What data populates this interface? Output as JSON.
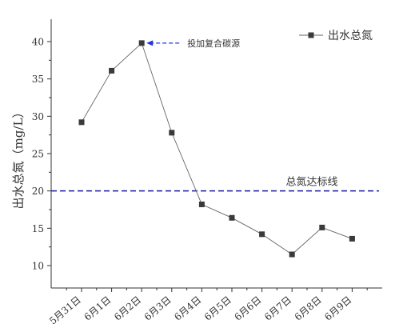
{
  "chart_data": {
    "type": "line",
    "title": "",
    "xlabel": "",
    "ylabel": "出水总氮（mg/L）",
    "categories": [
      "5月31日",
      "6月1日",
      "6月2日",
      "6月3日",
      "6月4日",
      "6月5日",
      "6月6日",
      "6月7日",
      "6月8日",
      "6月9日"
    ],
    "series": [
      {
        "name": "出水总氮",
        "values": [
          29.2,
          36.1,
          39.8,
          27.8,
          18.2,
          16.4,
          14.2,
          11.5,
          15.1,
          13.6
        ],
        "color": "#333333",
        "marker": "square"
      }
    ],
    "ylim": [
      7,
      43
    ],
    "yticks": [
      10,
      15,
      20,
      25,
      30,
      35,
      40
    ],
    "grid": false,
    "legend_position": "top-right",
    "reference_line": {
      "value": 20,
      "label": "总氮达标线",
      "color": "#1a1aa6",
      "style": "dashed"
    },
    "annotations": [
      {
        "category": "6月2日",
        "text": "投加复合碳源",
        "color": "#2233dd"
      }
    ]
  }
}
